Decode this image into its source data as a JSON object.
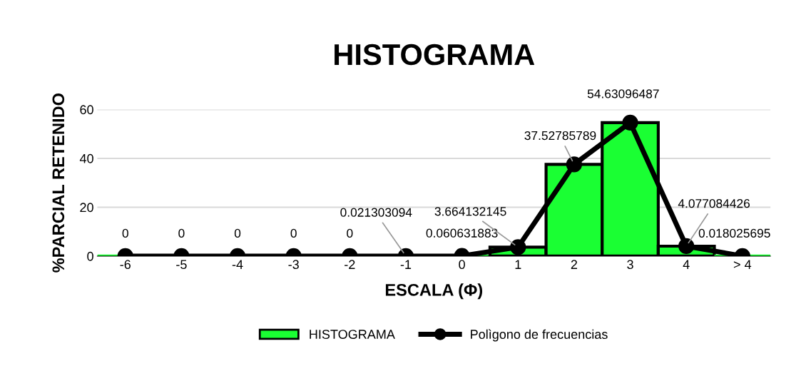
{
  "chart_data": {
    "type": "bar",
    "title": "HISTOGRAMA",
    "xlabel": "ESCALA (Φ)",
    "ylabel": "%PARCIAL RETENIDO",
    "categories": [
      "-6",
      "-5",
      "-4",
      "-3",
      "-2",
      "-1",
      "0",
      "1",
      "2",
      "3",
      "4",
      "> 4"
    ],
    "series": [
      {
        "name": "HISTOGRAMA",
        "type": "bar",
        "color": "#1aff33",
        "values": [
          0,
          0,
          0,
          0,
          0,
          0,
          0,
          3.664132145,
          37.52785789,
          54.63096487,
          4.077084426,
          0
        ]
      },
      {
        "name": "Polìgono de frecuencias",
        "type": "line",
        "color": "#000000",
        "marker": "circle",
        "data_labels": true,
        "values": [
          0,
          0,
          0,
          0,
          0,
          0.021303094,
          0.060631883,
          3.664132145,
          37.52785789,
          54.63096487,
          4.077084426,
          0.018025695
        ]
      }
    ],
    "ylim": [
      0,
      60
    ],
    "yticks": [
      0,
      20,
      40,
      60
    ],
    "grid": "y",
    "legend": "bottom"
  }
}
